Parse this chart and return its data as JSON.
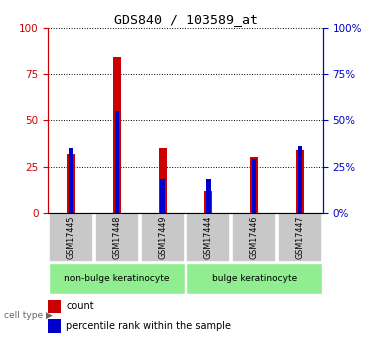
{
  "title": "GDS840 / 103589_at",
  "samples": [
    "GSM17445",
    "GSM17448",
    "GSM17449",
    "GSM17444",
    "GSM17446",
    "GSM17447"
  ],
  "count_values": [
    32,
    84,
    35,
    12,
    30,
    34
  ],
  "percentile_values": [
    35,
    55,
    18,
    18,
    29,
    36
  ],
  "ylim_left": [
    0,
    100
  ],
  "ylim_right": [
    0,
    100
  ],
  "left_yticks": [
    0,
    25,
    50,
    75,
    100
  ],
  "right_yticks": [
    0,
    25,
    50,
    75,
    100
  ],
  "bar_color_count": "#cc0000",
  "bar_color_percentile": "#0000cc",
  "grid_color": "black",
  "group_info": [
    {
      "label": "non-bulge keratinocyte",
      "start": 0,
      "end": 2,
      "color": "#90ee90"
    },
    {
      "label": "bulge keratinocyte",
      "start": 3,
      "end": 5,
      "color": "#90ee90"
    }
  ],
  "cell_type_label": "cell type",
  "legend_count_label": "count",
  "legend_percentile_label": "percentile rank within the sample",
  "left_axis_color": "#cc0000",
  "right_axis_color": "#0000cc",
  "bg_color": "white",
  "sample_box_color": "#c8c8c8",
  "bar_width": 0.18
}
